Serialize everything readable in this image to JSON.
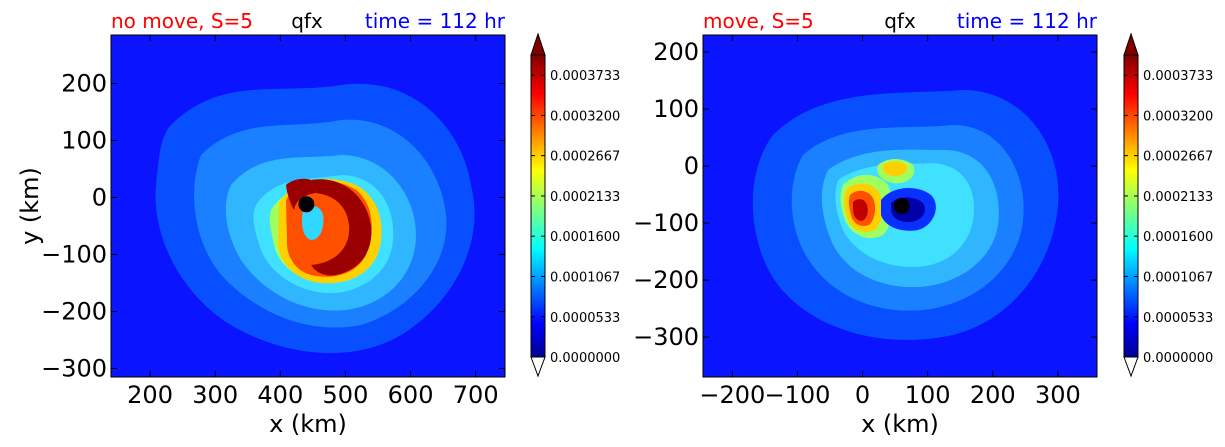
{
  "chart_data": [
    {
      "type": "heatmap",
      "title_left": "no move, S=5",
      "title_center": "qfx",
      "title_right": "time = 112 hr",
      "xlabel": "x (km)",
      "ylabel": "y (km)",
      "xlim": [
        140,
        745
      ],
      "ylim": [
        -315,
        285
      ],
      "xticks": [
        "200",
        "300",
        "400",
        "500",
        "600",
        "700"
      ],
      "xtick_values": [
        200,
        300,
        400,
        500,
        600,
        700
      ],
      "yticks": [
        "200",
        "100",
        "0",
        "−100",
        "−200",
        "−300"
      ],
      "ytick_values": [
        200,
        100,
        0,
        -100,
        -200,
        -300
      ],
      "center_marker": {
        "x": 440,
        "y": -12
      },
      "pattern": "ring",
      "colorbar": {
        "labels": [
          "0.0003733",
          "0.0003200",
          "0.0002667",
          "0.0002133",
          "0.0001600",
          "0.0001067",
          "0.0000533",
          "0.0000000"
        ],
        "values": [
          0.0003733,
          0.00032,
          0.0002667,
          0.0002133,
          0.00016,
          0.0001067,
          5.33e-05,
          0.0
        ],
        "vmin": 0.0,
        "vmax": 0.0004,
        "extend": "both"
      }
    },
    {
      "type": "heatmap",
      "title_left": "move, S=5",
      "title_center": "qfx",
      "title_right": "time = 112 hr",
      "xlabel": "x (km)",
      "ylabel": "",
      "xlim": [
        -245,
        360
      ],
      "ylim": [
        -370,
        230
      ],
      "xticks": [
        "−200",
        "−100",
        "0",
        "100",
        "200",
        "300"
      ],
      "xtick_values": [
        -200,
        -100,
        0,
        100,
        200,
        300
      ],
      "yticks": [
        "200",
        "100",
        "0",
        "−100",
        "−200",
        "−300"
      ],
      "ytick_values": [
        200,
        100,
        0,
        -100,
        -200,
        -300
      ],
      "center_marker": {
        "x": 60,
        "y": -70
      },
      "pattern": "asymmetric",
      "colorbar": {
        "labels": [
          "0.0003733",
          "0.0003200",
          "0.0002667",
          "0.0002133",
          "0.0001600",
          "0.0001067",
          "0.0000533",
          "0.0000000"
        ],
        "values": [
          0.0003733,
          0.00032,
          0.0002667,
          0.0002133,
          0.00016,
          0.0001067,
          5.33e-05,
          0.0
        ],
        "vmin": 0.0,
        "vmax": 0.0004,
        "extend": "both"
      }
    }
  ],
  "colors": {
    "title_left": "#ff0000",
    "title_center": "#000000",
    "title_right": "#0000ff",
    "background_field": "#0a14ff",
    "marker": "#000000"
  }
}
